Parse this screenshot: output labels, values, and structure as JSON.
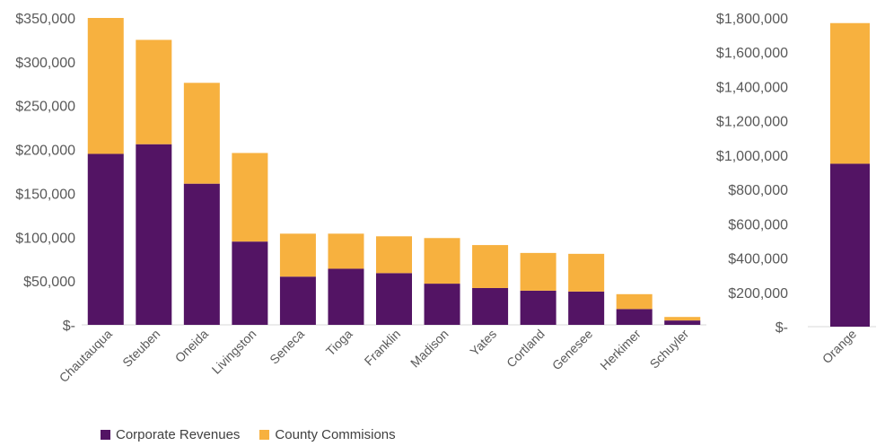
{
  "chart_data": [
    {
      "type": "bar",
      "stacked": true,
      "categories": [
        "Chautauqua",
        "Steuben",
        "Oneida",
        "Livingston",
        "Seneca",
        "Tioga",
        "Franklin",
        "Madison",
        "Yates",
        "Cortland",
        "Genesee",
        "Herkimer",
        "Schuyler"
      ],
      "series": [
        {
          "name": "Corporate Revenues",
          "values": [
            195000,
            206000,
            161000,
            95000,
            55000,
            64000,
            59000,
            47000,
            42000,
            39000,
            38000,
            18000,
            5000
          ]
        },
        {
          "name": "County Commisions",
          "values": [
            155000,
            119000,
            115000,
            101000,
            49000,
            40000,
            42000,
            52000,
            49000,
            43000,
            43000,
            17000,
            4000
          ]
        }
      ],
      "ylim": [
        0,
        350000
      ],
      "yticks": [
        "$-",
        "$50,000",
        "$100,000",
        "$150,000",
        "$200,000",
        "$250,000",
        "$300,000",
        "$350,000"
      ],
      "grid": false
    },
    {
      "type": "bar",
      "stacked": true,
      "categories": [
        "Orange"
      ],
      "series": [
        {
          "name": "Corporate Revenues",
          "values": [
            950000
          ]
        },
        {
          "name": "County Commisions",
          "values": [
            820000
          ]
        }
      ],
      "ylim": [
        0,
        1800000
      ],
      "yticks": [
        "$-",
        "$200,000",
        "$400,000",
        "$600,000",
        "$800,000",
        "$1,000,000",
        "$1,200,000",
        "$1,400,000",
        "$1,600,000",
        "$1,800,000"
      ],
      "grid": false
    }
  ],
  "legend": {
    "placement": "bottom-left",
    "items": [
      {
        "label": "Corporate Revenues",
        "color": "#531464"
      },
      {
        "label": "County Commisions",
        "color": "#F7B13F"
      }
    ]
  },
  "colors": {
    "series1": "#531464",
    "series2": "#F7B13F",
    "axis": "#D9D9D9",
    "text": "#595959"
  }
}
